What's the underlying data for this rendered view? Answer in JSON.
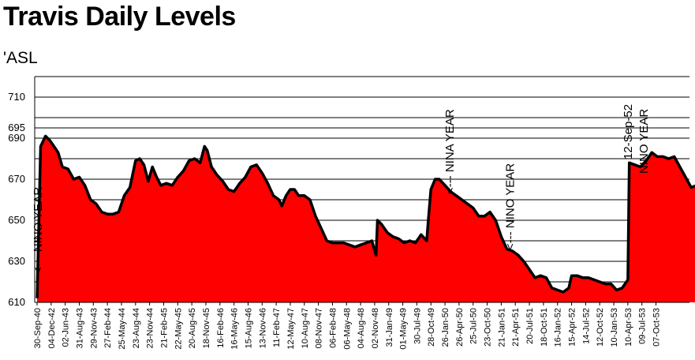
{
  "chart_data": {
    "type": "area",
    "title": "Travis Daily Levels",
    "unit_label": "'ASL",
    "xlabel": "",
    "ylabel": "",
    "ylim": [
      610,
      720
    ],
    "yticks": [
      610,
      630,
      650,
      670,
      690,
      695,
      710
    ],
    "grid": true,
    "fill_color": "#ff0000",
    "line_color": "#000000",
    "x_tick_labels": [
      "30-Sep-40",
      "04-Dec-42",
      "02-Jun-43",
      "31-Aug-43",
      "29-Nov-43",
      "27-Feb-44",
      "25-May-44",
      "23-Aug-44",
      "23-Nov-44",
      "21-Feb-45",
      "22-May-45",
      "20-Aug-45",
      "18-Nov-45",
      "16-Feb-46",
      "16-May-46",
      "15-Aug-46",
      "13-Nov-46",
      "11-Feb-47",
      "12-May-47",
      "10-Aug-47",
      "08-Nov-47",
      "06-Feb-48",
      "06-May-48",
      "04-Aug-48",
      "02-Nov-48",
      "31-Jan-49",
      "01-May-49",
      "30-Jul-49",
      "28-Oct-49",
      "26-Jan-50",
      "26-Apr-50",
      "25-Jul-50",
      "23-Oct-50",
      "21-Jan-51",
      "21-Apr-51",
      "20-Jul-51",
      "18-Oct-51",
      "16-Jan-52",
      "15-Apr-52",
      "14-Jul-52",
      "12-Oct-52",
      "10-Jan-53",
      "10-Apr-53",
      "09-Jul-53",
      "07-Oct-53"
    ],
    "series": [
      {
        "values": [
          [
            0,
            612
          ],
          [
            0.25,
            686
          ],
          [
            0.6,
            691
          ],
          [
            0.9,
            689
          ],
          [
            1.2,
            686
          ],
          [
            1.5,
            683
          ],
          [
            1.8,
            676
          ],
          [
            2.2,
            675
          ],
          [
            2.6,
            670
          ],
          [
            3.0,
            671
          ],
          [
            3.4,
            667
          ],
          [
            3.8,
            660
          ],
          [
            4.2,
            658
          ],
          [
            4.6,
            654
          ],
          [
            5.0,
            653
          ],
          [
            5.4,
            653
          ],
          [
            5.8,
            654
          ],
          [
            6.2,
            662
          ],
          [
            6.6,
            666
          ],
          [
            7.0,
            679
          ],
          [
            7.3,
            680
          ],
          [
            7.6,
            677
          ],
          [
            7.9,
            669
          ],
          [
            8.2,
            676
          ],
          [
            8.5,
            671
          ],
          [
            8.8,
            667
          ],
          [
            9.2,
            668
          ],
          [
            9.6,
            667
          ],
          [
            10.0,
            671
          ],
          [
            10.4,
            674
          ],
          [
            10.8,
            679
          ],
          [
            11.2,
            680
          ],
          [
            11.6,
            678
          ],
          [
            11.9,
            686
          ],
          [
            12.1,
            684
          ],
          [
            12.4,
            676
          ],
          [
            12.8,
            672
          ],
          [
            13.2,
            669
          ],
          [
            13.6,
            665
          ],
          [
            14.0,
            664
          ],
          [
            14.4,
            668
          ],
          [
            14.8,
            671
          ],
          [
            15.2,
            676
          ],
          [
            15.6,
            677
          ],
          [
            16.0,
            673
          ],
          [
            16.4,
            668
          ],
          [
            16.8,
            662
          ],
          [
            17.2,
            660
          ],
          [
            17.4,
            657
          ],
          [
            17.7,
            662
          ],
          [
            18.0,
            665
          ],
          [
            18.3,
            665
          ],
          [
            18.6,
            662
          ],
          [
            19.0,
            662
          ],
          [
            19.4,
            660
          ],
          [
            19.8,
            652
          ],
          [
            20.2,
            646
          ],
          [
            20.6,
            640
          ],
          [
            21.0,
            639
          ],
          [
            21.4,
            639
          ],
          [
            21.8,
            639
          ],
          [
            22.2,
            638
          ],
          [
            22.6,
            637
          ],
          [
            23.0,
            638
          ],
          [
            23.4,
            639
          ],
          [
            23.8,
            640
          ],
          [
            24.1,
            633
          ],
          [
            24.2,
            650
          ],
          [
            24.5,
            648
          ],
          [
            24.9,
            644
          ],
          [
            25.3,
            642
          ],
          [
            25.7,
            641
          ],
          [
            26.1,
            639
          ],
          [
            26.5,
            640
          ],
          [
            26.9,
            639
          ],
          [
            27.3,
            643
          ],
          [
            27.7,
            640
          ],
          [
            27.8,
            649
          ],
          [
            28.0,
            665
          ],
          [
            28.3,
            670
          ],
          [
            28.6,
            670
          ],
          [
            29.0,
            667
          ],
          [
            29.4,
            664
          ],
          [
            29.8,
            662
          ],
          [
            30.2,
            660
          ],
          [
            30.6,
            658
          ],
          [
            31.0,
            656
          ],
          [
            31.4,
            652
          ],
          [
            31.8,
            652
          ],
          [
            32.2,
            654
          ],
          [
            32.6,
            650
          ],
          [
            33.0,
            642
          ],
          [
            33.4,
            636
          ],
          [
            33.8,
            635
          ],
          [
            34.2,
            633
          ],
          [
            34.6,
            630
          ],
          [
            35.0,
            626
          ],
          [
            35.4,
            622
          ],
          [
            35.8,
            623
          ],
          [
            36.2,
            622
          ],
          [
            36.6,
            617
          ],
          [
            37.0,
            616
          ],
          [
            37.4,
            615
          ],
          [
            37.8,
            617
          ],
          [
            38.0,
            623
          ],
          [
            38.4,
            623
          ],
          [
            38.8,
            622
          ],
          [
            39.2,
            622
          ],
          [
            39.6,
            621
          ],
          [
            40.0,
            620
          ],
          [
            40.4,
            619
          ],
          [
            40.8,
            619
          ],
          [
            41.2,
            616
          ],
          [
            41.6,
            617
          ],
          [
            42.0,
            621
          ],
          [
            42.1,
            678
          ],
          [
            42.5,
            677
          ],
          [
            42.9,
            676
          ],
          [
            43.3,
            679
          ],
          [
            43.7,
            683
          ],
          [
            44.1,
            681
          ],
          [
            44.5,
            681
          ],
          [
            44.9,
            680
          ],
          [
            45.3,
            681
          ],
          [
            45.7,
            676
          ],
          [
            46.1,
            671
          ],
          [
            46.5,
            666
          ],
          [
            46.9,
            667
          ],
          [
            47.3,
            671
          ],
          [
            47.7,
            673
          ],
          [
            48.0,
            673
          ]
        ]
      }
    ],
    "annotations": [
      {
        "text": "<--- NINO YEAR",
        "rotation": -90
      },
      {
        "text": "<--- NINA YEAR",
        "rotation": -90
      },
      {
        "text": "<--- NINO YEAR",
        "rotation": -90
      },
      {
        "text": "12-Sep-52",
        "rotation": -90
      },
      {
        "text": "NINO YEAR",
        "rotation": -90
      }
    ]
  }
}
